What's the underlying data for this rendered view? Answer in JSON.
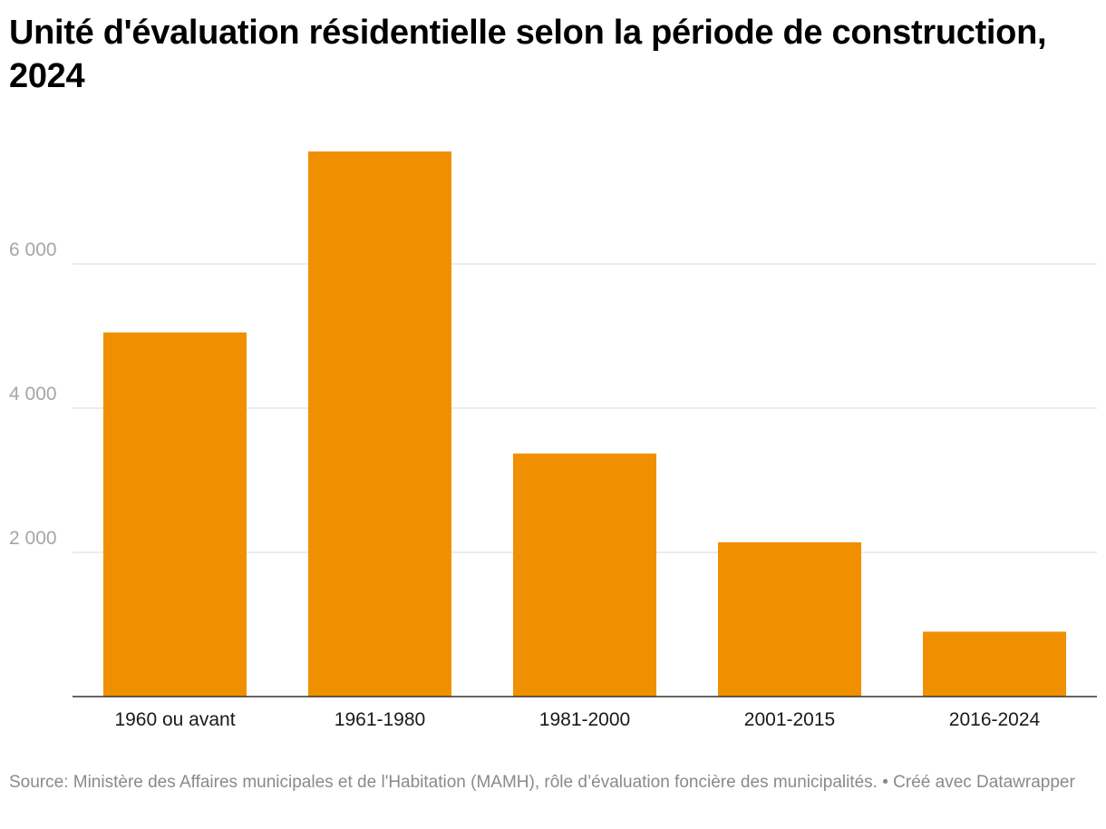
{
  "title": "Unité d'évaluation résidentielle selon la période de construction, 2024",
  "footer": {
    "source": "Source: Ministère des Affaires municipales et de l'Habitation (MAMH), rôle d’évaluation foncière des municipalités.",
    "credit": "Créé avec Datawrapper"
  },
  "colors": {
    "bar": "#f09000",
    "grid": "#e1e1e1",
    "axis": "#333333"
  },
  "chart_data": {
    "type": "bar",
    "title": "Unité d'évaluation résidentielle selon la période de construction, 2024",
    "xlabel": "",
    "ylabel": "",
    "categories": [
      "1960 ou avant",
      "1961-1980",
      "1981-2000",
      "2001-2015",
      "2016-2024"
    ],
    "values": [
      5050,
      7560,
      3370,
      2140,
      900
    ],
    "ylim": [
      0,
      7800
    ],
    "yticks": [
      2000,
      4000,
      6000
    ],
    "ytick_labels": [
      "2 000",
      "4 000",
      "6 000"
    ],
    "grid": true,
    "legend": "none"
  }
}
